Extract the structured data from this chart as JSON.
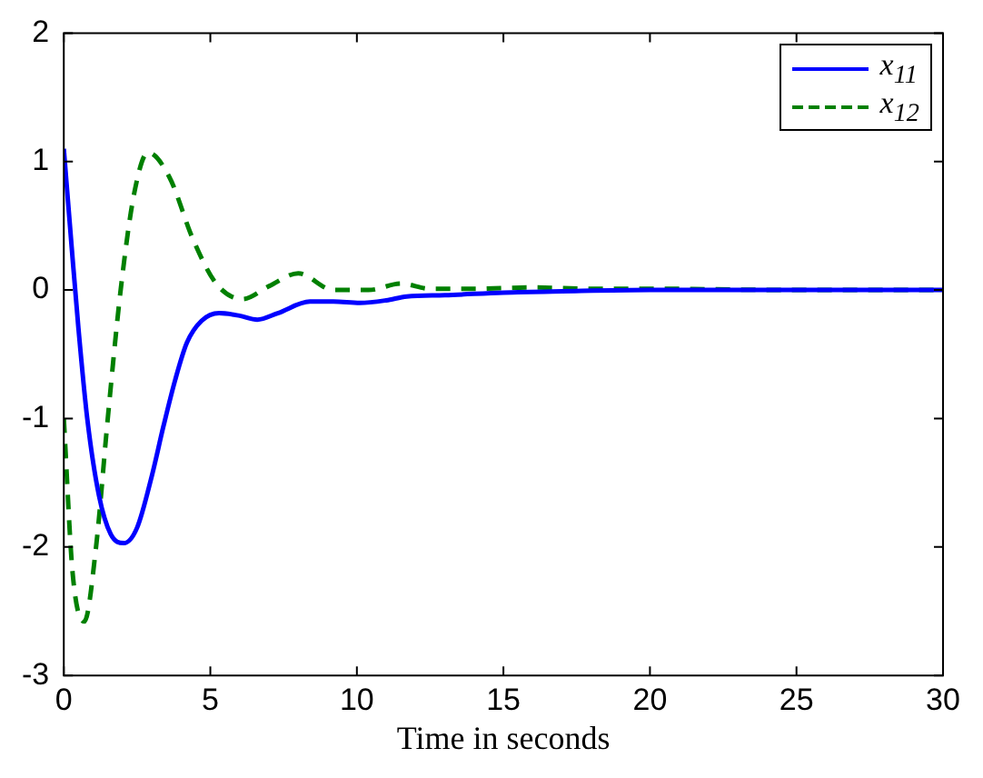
{
  "chart_data": {
    "type": "line",
    "xlabel": "Time in seconds",
    "xlim": [
      0,
      30
    ],
    "ylim": [
      -3,
      2
    ],
    "xticks": [
      0,
      5,
      10,
      15,
      20,
      25,
      30
    ],
    "yticks": [
      -3,
      -2,
      -1,
      0,
      1,
      2
    ],
    "grid": false,
    "legend": "top right",
    "marker": "none",
    "series": [
      {
        "name": "x$_{11}$",
        "color": "#0000ff",
        "line_style": "solid",
        "x": [
          0,
          0.27,
          0.5,
          0.8,
          1.2,
          1.6,
          2.05,
          2.5,
          3.0,
          3.4,
          3.8,
          4.2,
          4.7,
          5.3,
          6.0,
          6.6,
          7.3,
          8.4,
          9.2,
          10.1,
          11.0,
          11.7,
          13,
          15,
          17,
          20,
          25,
          30
        ],
        "values": [
          1.1,
          0.33,
          -0.3,
          -1.0,
          -1.6,
          -1.9,
          -1.97,
          -1.85,
          -1.45,
          -1.06,
          -0.7,
          -0.41,
          -0.24,
          -0.18,
          -0.2,
          -0.23,
          -0.18,
          -0.09,
          -0.09,
          -0.1,
          -0.08,
          -0.05,
          -0.04,
          -0.02,
          -0.01,
          0,
          0,
          0
        ]
      },
      {
        "name": "x$_{12}$",
        "color": "#008000",
        "line_style": "dashed",
        "x": [
          0,
          0.3,
          0.7,
          1.1,
          1.5,
          1.94,
          2.4,
          2.87,
          3.6,
          4.4,
          5.2,
          6.1,
          7.0,
          8.0,
          9.2,
          10.4,
          11.5,
          12.5,
          14,
          16,
          18,
          20,
          25,
          30
        ],
        "values": [
          -1.0,
          -2.2,
          -2.58,
          -2.0,
          -1.0,
          0,
          0.75,
          1.07,
          0.88,
          0.4,
          0.05,
          -0.07,
          0.03,
          0.13,
          0,
          0.0,
          0.05,
          0.01,
          0.01,
          0.02,
          0.01,
          0.01,
          0,
          0
        ]
      }
    ]
  }
}
